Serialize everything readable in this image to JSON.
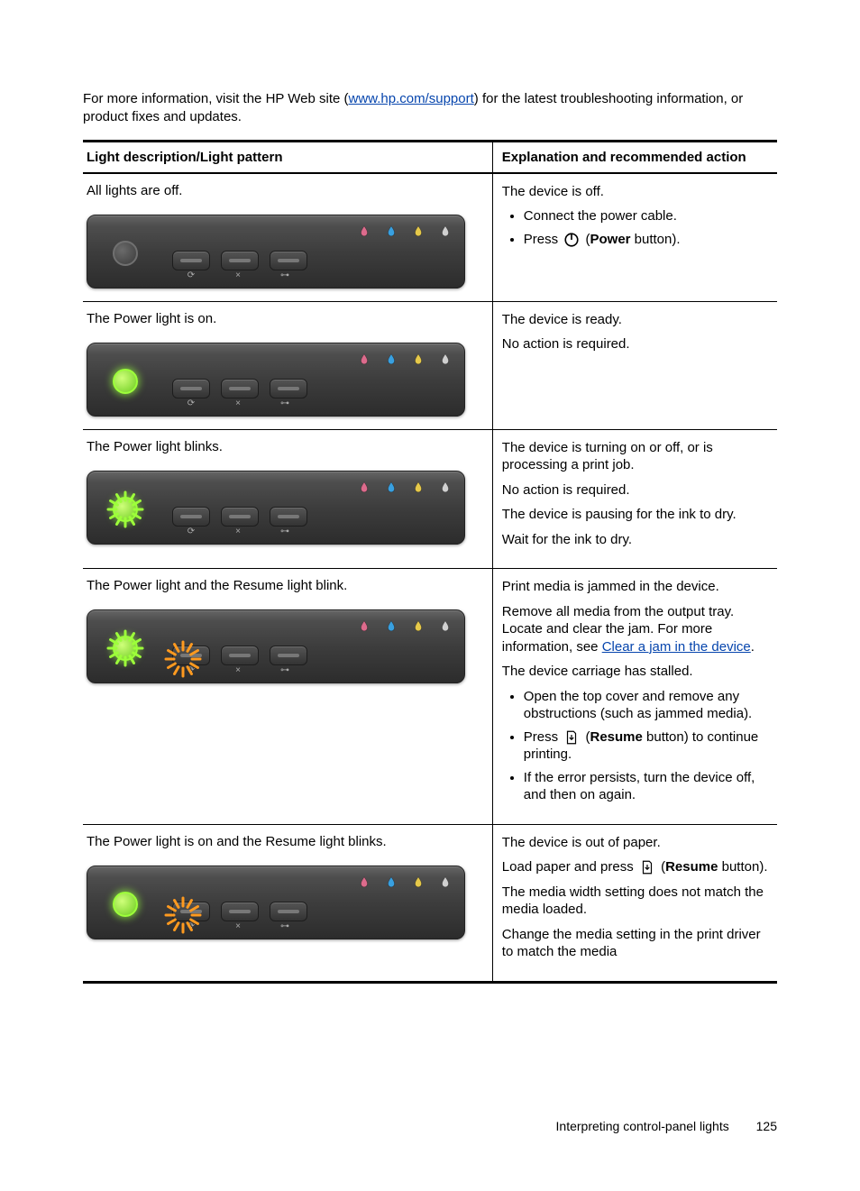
{
  "intro": {
    "pre": "For more information, visit the HP Web site (",
    "link_text": "www.hp.com/support",
    "post": ") for the latest troubleshooting information, or product fixes and updates."
  },
  "table": {
    "headers": {
      "col1": "Light description/Light pattern",
      "col2": "Explanation and recommended action"
    }
  },
  "panel": {
    "ink_colors": [
      "#dd6b8c",
      "#39a0e0",
      "#e6c94a",
      "#d0d0d0"
    ],
    "green_blink": "#9dff3a",
    "orange_blink": "#ff9a1f",
    "cp_bg_top": "#666666",
    "cp_bg_bottom": "#2c2c2c"
  },
  "rows": [
    {
      "title": "All lights are off.",
      "power": "off",
      "power_blink": false,
      "resume_blink": false,
      "exp": [
        {
          "p": "The device is off."
        },
        {
          "ul": [
            {
              "text": "Connect the power cable."
            },
            {
              "text_pre": "Press ",
              "icon": "power",
              "text_post": " (",
              "bold": "Power",
              "tail": " button)."
            }
          ]
        }
      ]
    },
    {
      "title": "The Power light is on.",
      "power": "on",
      "power_blink": false,
      "resume_blink": false,
      "exp": [
        {
          "p": "The device is ready."
        },
        {
          "p": "No action is required."
        }
      ]
    },
    {
      "title": "The Power light blinks.",
      "power": "on",
      "power_blink": true,
      "resume_blink": false,
      "exp": [
        {
          "p": "The device is turning on or off, or is processing a print job."
        },
        {
          "p": "No action is required."
        },
        {
          "p": "The device is pausing for the ink to dry."
        },
        {
          "p": "Wait for the ink to dry."
        }
      ]
    },
    {
      "title": "The Power light and the Resume light blink.",
      "power": "on",
      "power_blink": true,
      "resume_blink": true,
      "exp": [
        {
          "p": "Print media is jammed in the device."
        },
        {
          "p_link": {
            "pre": "Remove all media from the output tray. Locate and clear the jam. For more information, see ",
            "link": "Clear a jam in the device",
            "post": "."
          }
        },
        {
          "p": "The device carriage has stalled."
        },
        {
          "ul": [
            {
              "text": "Open the top cover and remove any obstructions (such as jammed media)."
            },
            {
              "text_pre": "Press ",
              "icon": "resume",
              "text_post": " (",
              "bold": "Resume",
              "tail": " button) to continue printing."
            },
            {
              "text": "If the error persists, turn the device off, and then on again."
            }
          ]
        }
      ]
    },
    {
      "title": "The Power light is on and the Resume light blinks.",
      "power": "on",
      "power_blink": false,
      "resume_blink": true,
      "exp": [
        {
          "p": "The device is out of paper."
        },
        {
          "p_icon": {
            "pre": "Load paper and press ",
            "icon": "resume",
            "post": " (",
            "bold": "Resume",
            "tail": " button)."
          }
        },
        {
          "p": "The media width setting does not match the media loaded."
        },
        {
          "p": "Change the media setting in the print driver to match the media"
        }
      ]
    }
  ],
  "footer": {
    "text": "Interpreting control-panel lights",
    "page": "125"
  }
}
